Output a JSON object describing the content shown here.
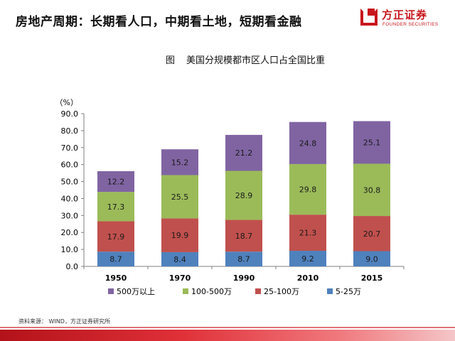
{
  "header": {
    "title": "房地产周期：长期看人口，中期看土地，短期看金融",
    "logo_cn": "方正证券",
    "logo_en": "FOUNDER SECURITIES"
  },
  "figure": {
    "label": "图",
    "title": "美国分规模都市区人口占全国比重"
  },
  "footer": {
    "source": "资料来源： WIND，方正证券研究所"
  },
  "colors": {
    "s1": "#4f81bd",
    "s2": "#c0504d",
    "s3": "#9bbb59",
    "s4": "#8064a2",
    "axis": "#7f7f7f",
    "accent": "#c8161d"
  },
  "chart_data": {
    "type": "bar",
    "stacked": true,
    "categories": [
      "1950",
      "1970",
      "1990",
      "2010",
      "2015"
    ],
    "y_unit_label": "（%）",
    "ylim": [
      0,
      90
    ],
    "ytick_step": 10,
    "ytick_labels": [
      "0.0",
      "10.0",
      "20.0",
      "30.0",
      "40.0",
      "50.0",
      "60.0",
      "70.0",
      "80.0",
      "90.0"
    ],
    "grid": false,
    "legend_position": "bottom",
    "series": [
      {
        "name": "5-25万",
        "color_key": "s1",
        "values": [
          8.7,
          8.4,
          8.7,
          9.2,
          9.0
        ]
      },
      {
        "name": "25-100万",
        "color_key": "s2",
        "values": [
          17.9,
          19.9,
          18.7,
          21.3,
          20.7
        ]
      },
      {
        "name": "100-500万",
        "color_key": "s3",
        "values": [
          17.3,
          25.5,
          28.9,
          29.8,
          30.8
        ]
      },
      {
        "name": "500万以上",
        "color_key": "s4",
        "values": [
          12.2,
          15.2,
          21.2,
          24.8,
          25.1
        ]
      }
    ],
    "legend_order": [
      "500万以上",
      "100-500万",
      "25-100万",
      "5-25万"
    ]
  }
}
